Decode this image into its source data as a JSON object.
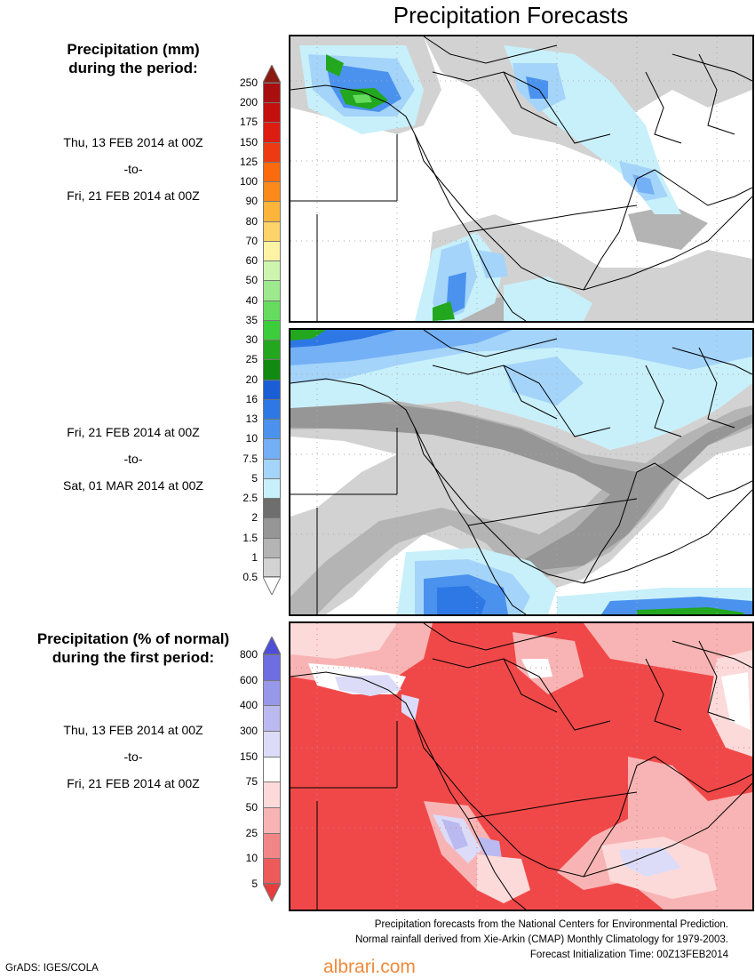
{
  "title": "Precipitation Forecasts",
  "sections": {
    "mm": {
      "heading": [
        "Precipitation (mm)",
        "during the period:"
      ]
    },
    "pct": {
      "heading": [
        "Precipitation (% of normal)",
        "during the first period:"
      ]
    }
  },
  "periods": {
    "first": {
      "start": "Thu, 13 FEB 2014 at 00Z",
      "sep": "-to-",
      "end": "Fri, 21 FEB 2014 at 00Z"
    },
    "second": {
      "start": "Fri, 21 FEB 2014 at 00Z",
      "sep": "-to-",
      "end": "Sat, 01 MAR 2014 at 00Z"
    },
    "third": {
      "start": "Thu, 13 FEB 2014 at 00Z",
      "sep": "-to-",
      "end": "Fri, 21 FEB 2014 at 00Z"
    }
  },
  "legend_mm": {
    "labels": [
      "250",
      "200",
      "175",
      "150",
      "125",
      "100",
      "90",
      "80",
      "70",
      "60",
      "50",
      "40",
      "35",
      "30",
      "25",
      "20",
      "16",
      "13",
      "10",
      "7.5",
      "5",
      "2.5",
      "2",
      "1.5",
      "1",
      "0.5"
    ],
    "colors": [
      "#8b1a10",
      "#a81010",
      "#c40f0f",
      "#dd1c12",
      "#ee3a10",
      "#fb6a0c",
      "#fb8a1a",
      "#fcb43a",
      "#fdd36a",
      "#fdf3a4",
      "#cdf5b0",
      "#9ee88e",
      "#66dc5e",
      "#3ccd3c",
      "#22a71e",
      "#108a10",
      "#1a5ed6",
      "#2e78e6",
      "#4a92ee",
      "#74b0f6",
      "#a4d4fa",
      "#c8f0fa",
      "#6e6e6e",
      "#969696",
      "#b4b4b4",
      "#d2d2d2",
      "#ffffff"
    ]
  },
  "legend_pct": {
    "labels": [
      "800",
      "600",
      "400",
      "300",
      "150",
      "75",
      "50",
      "25",
      "10",
      "5"
    ],
    "colors": [
      "#4e4ed8",
      "#6e6ee0",
      "#9898ea",
      "#babaf0",
      "#dcdcf8",
      "#ffffff",
      "#fcdada",
      "#f8b4b4",
      "#f28686",
      "#ec5a5a",
      "#e63c3c"
    ]
  },
  "colors": {
    "ocean": "#ffffff",
    "pct_red": "#f04848",
    "watermark": "#f08a3c"
  },
  "notes": [
    "Precipitation forecasts from the National Centers for Environmental Prediction.",
    "Normal rainfall derived from Xie-Arkin (CMAP) Monthly Climatology for 1979-2003.",
    "Forecast Initialization Time: 00Z13FEB2014"
  ],
  "credit": "GrADS: IGES/COLA",
  "watermark": "albrari.com"
}
